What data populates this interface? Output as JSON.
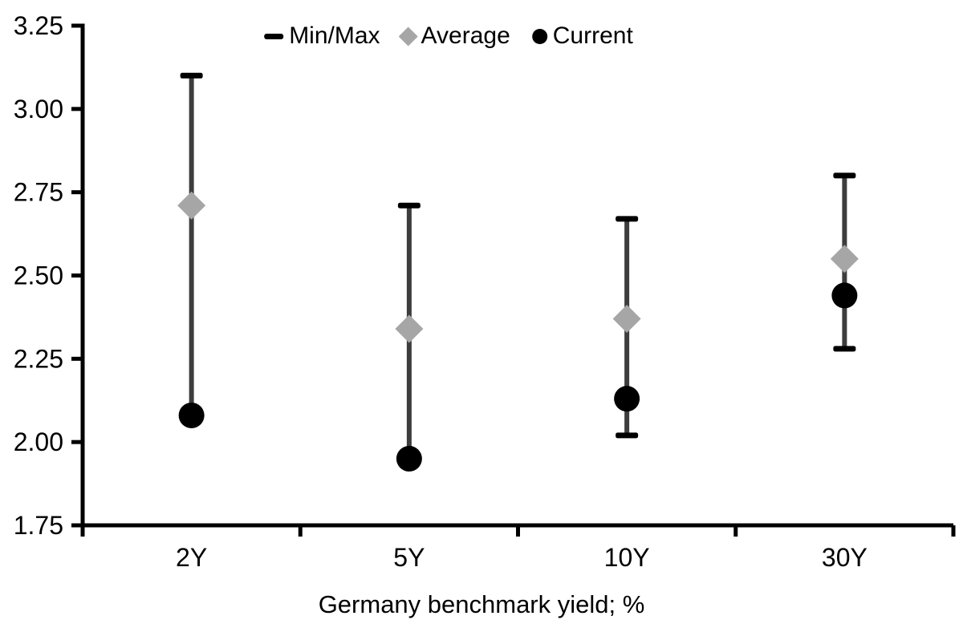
{
  "chart_data": {
    "type": "scatter",
    "subtype": "min-max-range-dot",
    "title": "",
    "xlabel": "Germany benchmark yield; %",
    "ylabel": "",
    "categories": [
      "2Y",
      "5Y",
      "10Y",
      "30Y"
    ],
    "series": [
      {
        "name": "Min/Max",
        "marker": "dash",
        "color": "#000000",
        "line_color": "#3d3d3d",
        "min": [
          2.08,
          1.95,
          2.02,
          2.28
        ],
        "max": [
          3.1,
          2.71,
          2.67,
          2.8
        ]
      },
      {
        "name": "Average",
        "marker": "diamond",
        "color": "#a6a6a6",
        "values": [
          2.71,
          2.34,
          2.37,
          2.55
        ]
      },
      {
        "name": "Current",
        "marker": "circle",
        "color": "#000000",
        "values": [
          2.08,
          1.95,
          2.13,
          2.44
        ]
      }
    ],
    "ylim": [
      1.75,
      3.25
    ],
    "ytick_step": 0.25,
    "ytick_labels": [
      "3.25",
      "3.00",
      "2.75",
      "2.50",
      "2.25",
      "2.00",
      "1.75"
    ],
    "grid": false,
    "legend_position": "top-center",
    "axis_color": "#000000",
    "text_color": "#000000",
    "background": "#ffffff"
  },
  "legend": {
    "items": [
      {
        "label": "Min/Max",
        "marker": "dash",
        "color": "#000000"
      },
      {
        "label": "Average",
        "marker": "diamond",
        "color": "#a6a6a6"
      },
      {
        "label": "Current",
        "marker": "circle",
        "color": "#000000"
      }
    ]
  },
  "xaxis": {
    "title": "Germany benchmark yield; %"
  }
}
